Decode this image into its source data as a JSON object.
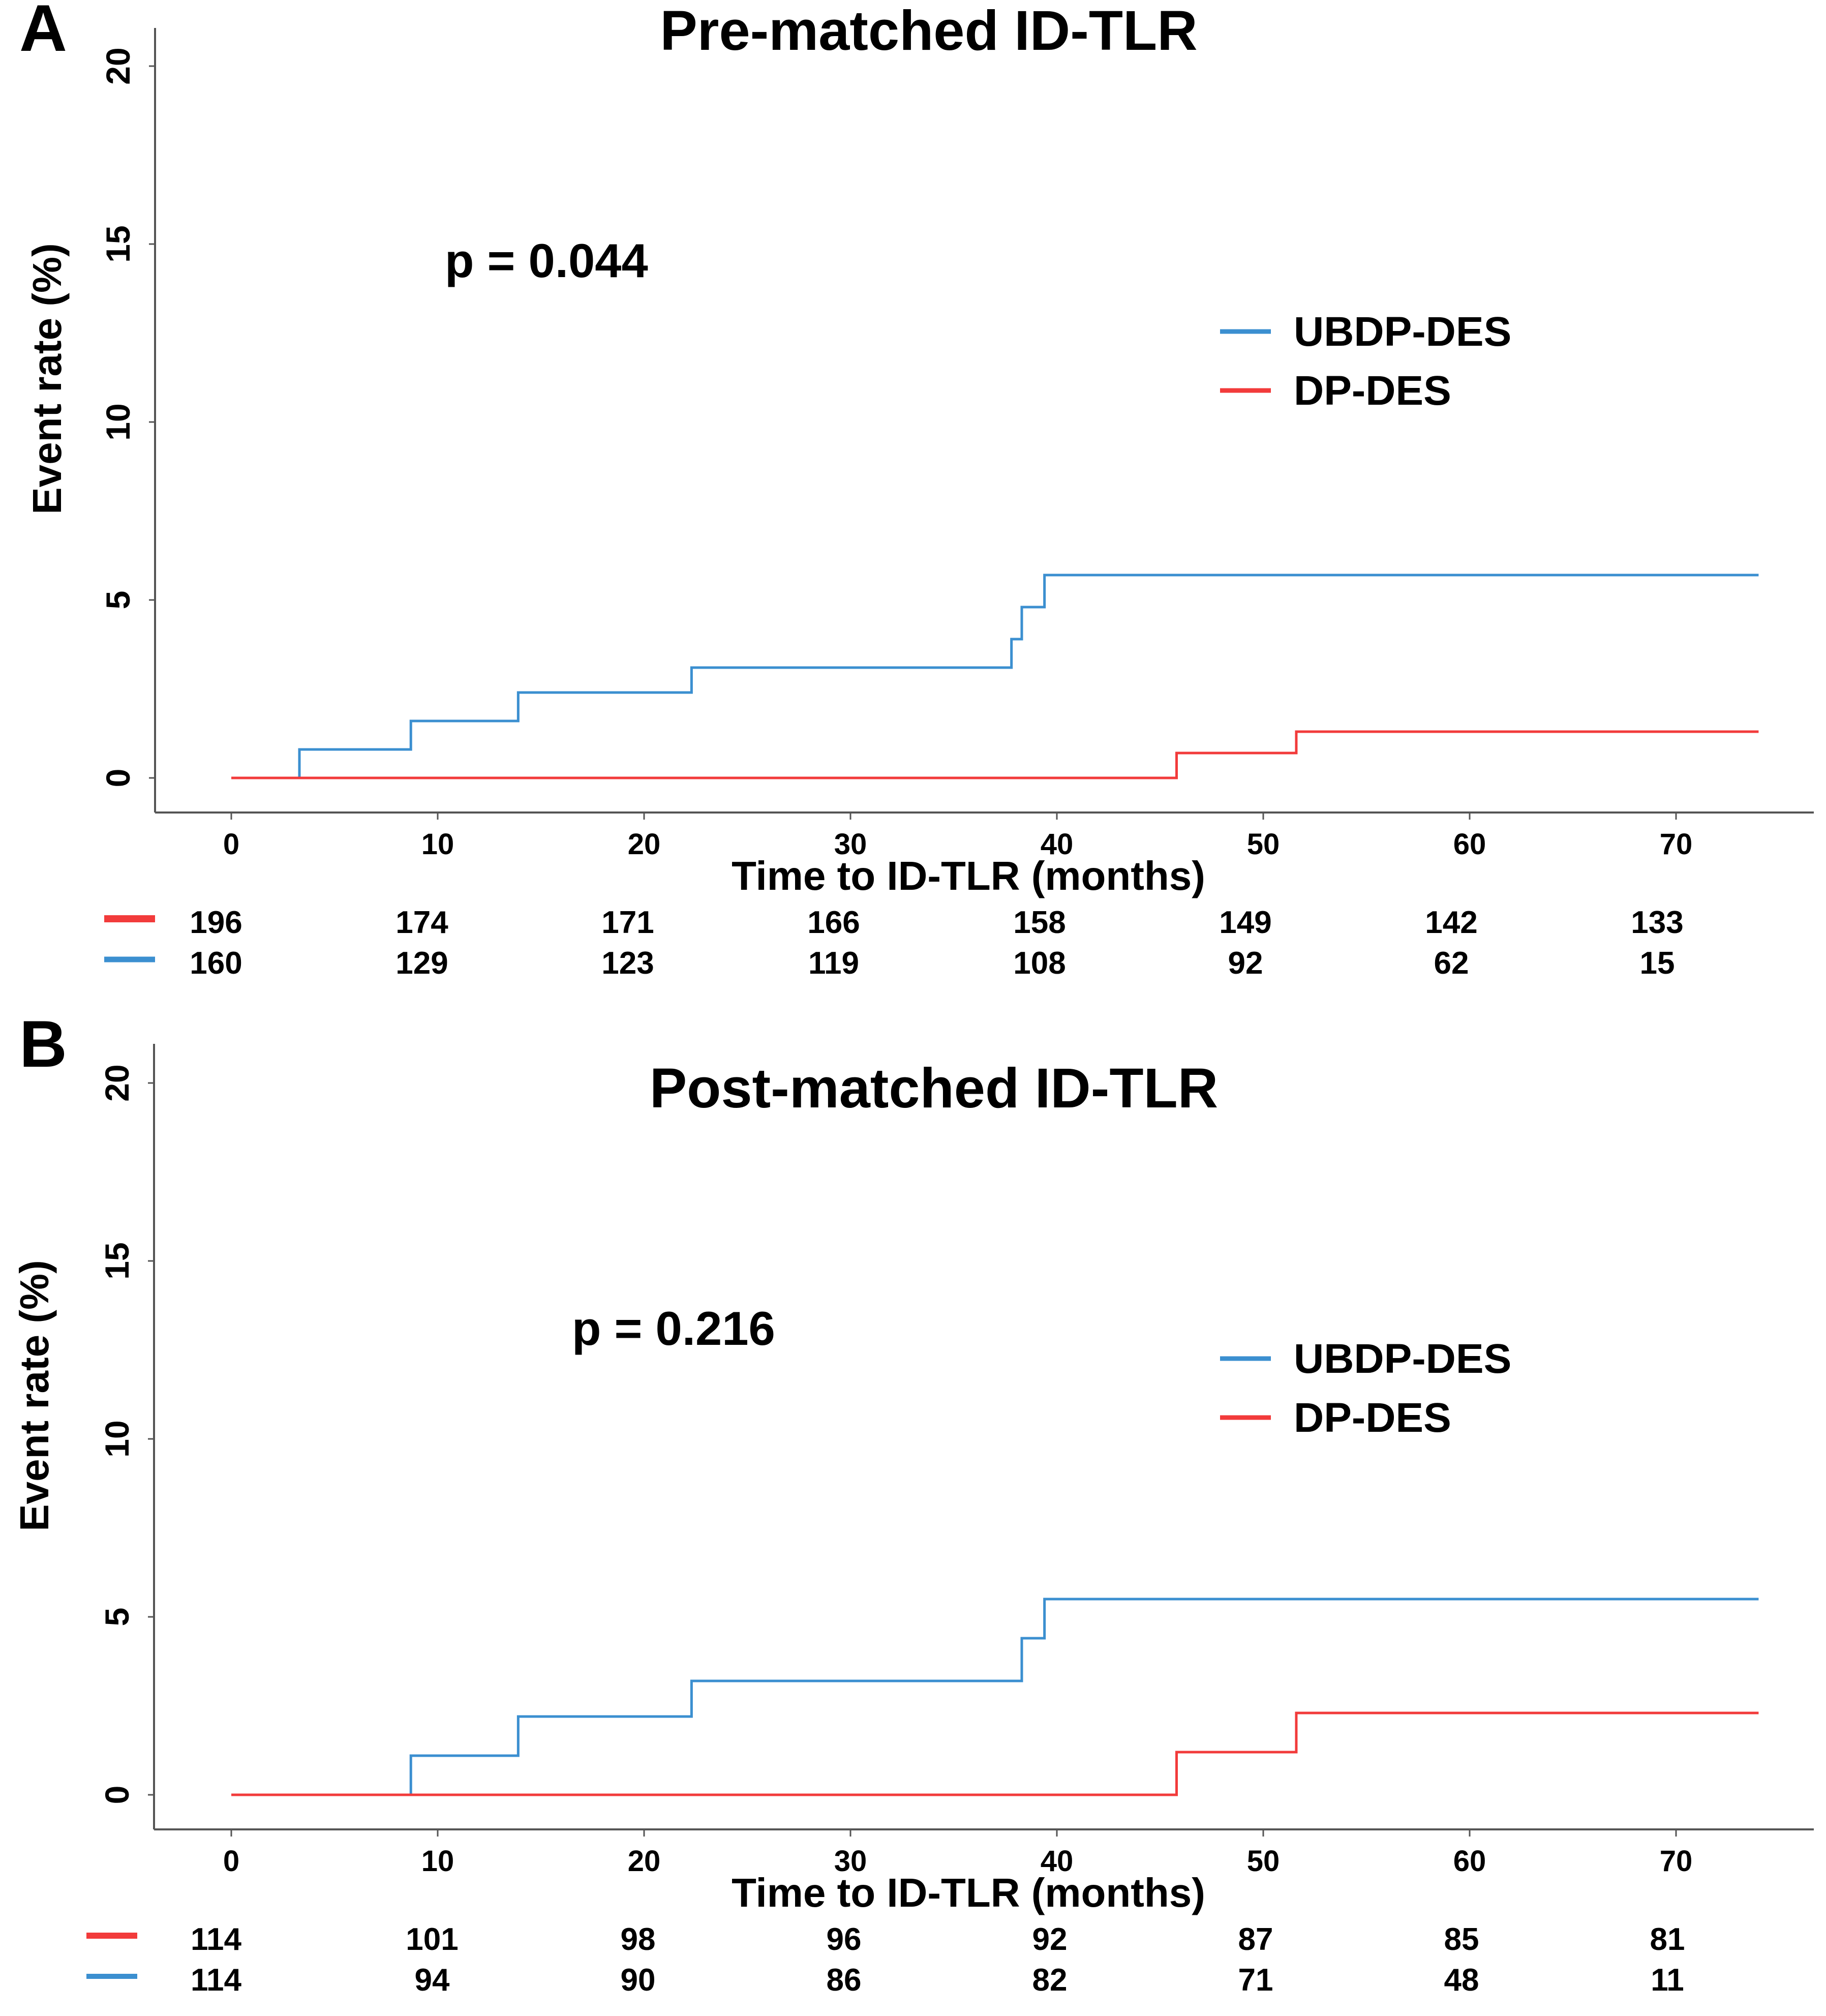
{
  "chart_data": [
    {
      "panel_label": "A",
      "type": "line",
      "title": "Pre-matched ID-TLR",
      "xlabel": "Time to ID-TLR (months)",
      "ylabel": "Event rate (%)",
      "xlim": [
        0,
        74
      ],
      "ylim": [
        0,
        20
      ],
      "xticks": [
        0,
        10,
        20,
        30,
        40,
        50,
        60,
        70
      ],
      "yticks": [
        0,
        5,
        10,
        15,
        20
      ],
      "p_value_text": "p = 0.044",
      "legend": {
        "position": "top-right",
        "entries": [
          "UBDP-DES",
          "DP-DES"
        ]
      },
      "series": [
        {
          "name": "UBDP-DES",
          "color": "#3b8fd0",
          "x": [
            0,
            3.3,
            8.7,
            13.9,
            22.3,
            37.8,
            38.3,
            39.4,
            74
          ],
          "y": [
            0,
            0.8,
            1.6,
            2.4,
            3.1,
            3.9,
            4.8,
            5.7,
            5.7
          ]
        },
        {
          "name": "DP-DES",
          "color": "#f23b3b",
          "x": [
            0,
            45.8,
            51.6,
            74
          ],
          "y": [
            0,
            0.7,
            1.3,
            1.3
          ]
        }
      ],
      "risk_table": {
        "rows": [
          {
            "color": "#f23b3b",
            "values": [
              "196",
              "174",
              "171",
              "166",
              "158",
              "149",
              "142",
              "133"
            ]
          },
          {
            "color": "#3b8fd0",
            "values": [
              "160",
              "129",
              "123",
              "119",
              "108",
              "92",
              "62",
              "15"
            ]
          }
        ]
      }
    },
    {
      "panel_label": "B",
      "type": "line",
      "title": "Post-matched ID-TLR",
      "xlabel": "Time to ID-TLR (months)",
      "ylabel": "Event rate (%)",
      "xlim": [
        0,
        74
      ],
      "ylim": [
        0,
        20
      ],
      "xticks": [
        0,
        10,
        20,
        30,
        40,
        50,
        60,
        70
      ],
      "yticks": [
        0,
        5,
        10,
        15,
        20
      ],
      "p_value_text": "p = 0.216",
      "legend": {
        "position": "top-right",
        "entries": [
          "UBDP-DES",
          "DP-DES"
        ]
      },
      "series": [
        {
          "name": "UBDP-DES",
          "color": "#3b8fd0",
          "x": [
            0,
            8.7,
            13.9,
            22.3,
            38.3,
            39.4,
            74
          ],
          "y": [
            0,
            1.1,
            2.2,
            3.2,
            4.4,
            5.5,
            5.5
          ]
        },
        {
          "name": "DP-DES",
          "color": "#f23b3b",
          "x": [
            0,
            45.8,
            51.6,
            74
          ],
          "y": [
            0,
            1.2,
            2.3,
            2.3
          ]
        }
      ],
      "risk_table": {
        "rows": [
          {
            "color": "#f23b3b",
            "values": [
              "114",
              "101",
              "98",
              "96",
              "92",
              "87",
              "85",
              "81"
            ]
          },
          {
            "color": "#3b8fd0",
            "values": [
              "114",
              "94",
              "90",
              "86",
              "82",
              "71",
              "48",
              "11"
            ]
          }
        ]
      }
    }
  ]
}
